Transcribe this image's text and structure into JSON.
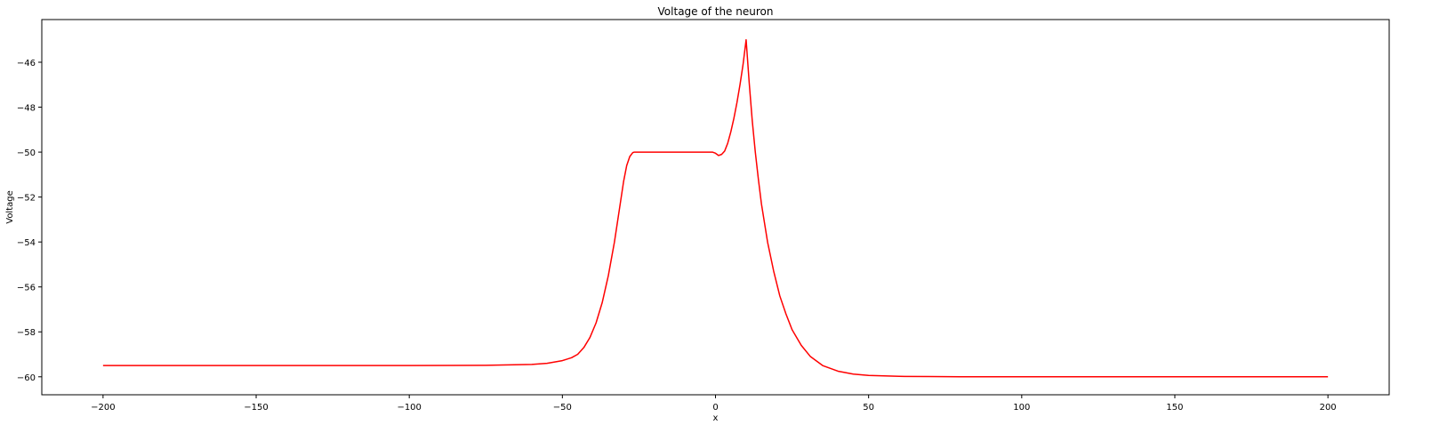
{
  "chart_data": {
    "type": "line",
    "title": "Voltage of the neuron",
    "xlabel": "x",
    "ylabel": "Voltage",
    "xlim": [
      -220,
      220
    ],
    "ylim": [
      -60.8,
      -44.1
    ],
    "xticks": [
      -200,
      -150,
      -100,
      -50,
      0,
      50,
      100,
      150,
      200
    ],
    "xtick_labels": [
      "−200",
      "−150",
      "−100",
      "−50",
      "0",
      "50",
      "100",
      "150",
      "200"
    ],
    "yticks": [
      -60,
      -58,
      -56,
      -54,
      -52,
      -50,
      -48,
      -46
    ],
    "ytick_labels": [
      "−60",
      "−58",
      "−56",
      "−54",
      "−52",
      "−50",
      "−48",
      "−46"
    ],
    "grid": false,
    "series": [
      {
        "color": "#ff0000",
        "x": [
          -200,
          -150,
          -100,
          -75,
          -60,
          -55,
          -50,
          -47,
          -45,
          -43,
          -41,
          -39,
          -37,
          -35,
          -33,
          -31,
          -30,
          -29,
          -28,
          -27,
          -26.5,
          -26,
          -20,
          -10,
          -1,
          0,
          1,
          2,
          3,
          4,
          5,
          6,
          7,
          8,
          9,
          10,
          11,
          12,
          13,
          14,
          15,
          17,
          19,
          21,
          23,
          25,
          28,
          31,
          35,
          40,
          45,
          50,
          60,
          70,
          80,
          100,
          150,
          200
        ],
        "y": [
          -59.5,
          -59.5,
          -59.5,
          -59.49,
          -59.45,
          -59.4,
          -59.28,
          -59.15,
          -59.0,
          -58.7,
          -58.25,
          -57.6,
          -56.7,
          -55.5,
          -54.0,
          -52.2,
          -51.3,
          -50.6,
          -50.2,
          -50.02,
          -50.0,
          -50.0,
          -50.0,
          -50.0,
          -50.0,
          -50.05,
          -50.15,
          -50.1,
          -49.95,
          -49.6,
          -49.1,
          -48.5,
          -47.8,
          -47.0,
          -46.1,
          -45.0,
          -46.9,
          -48.6,
          -50.0,
          -51.2,
          -52.3,
          -54.0,
          -55.3,
          -56.4,
          -57.2,
          -57.9,
          -58.6,
          -59.1,
          -59.5,
          -59.75,
          -59.88,
          -59.94,
          -59.98,
          -59.99,
          -60.0,
          -60.0,
          -60.0,
          -60.0
        ]
      }
    ]
  }
}
